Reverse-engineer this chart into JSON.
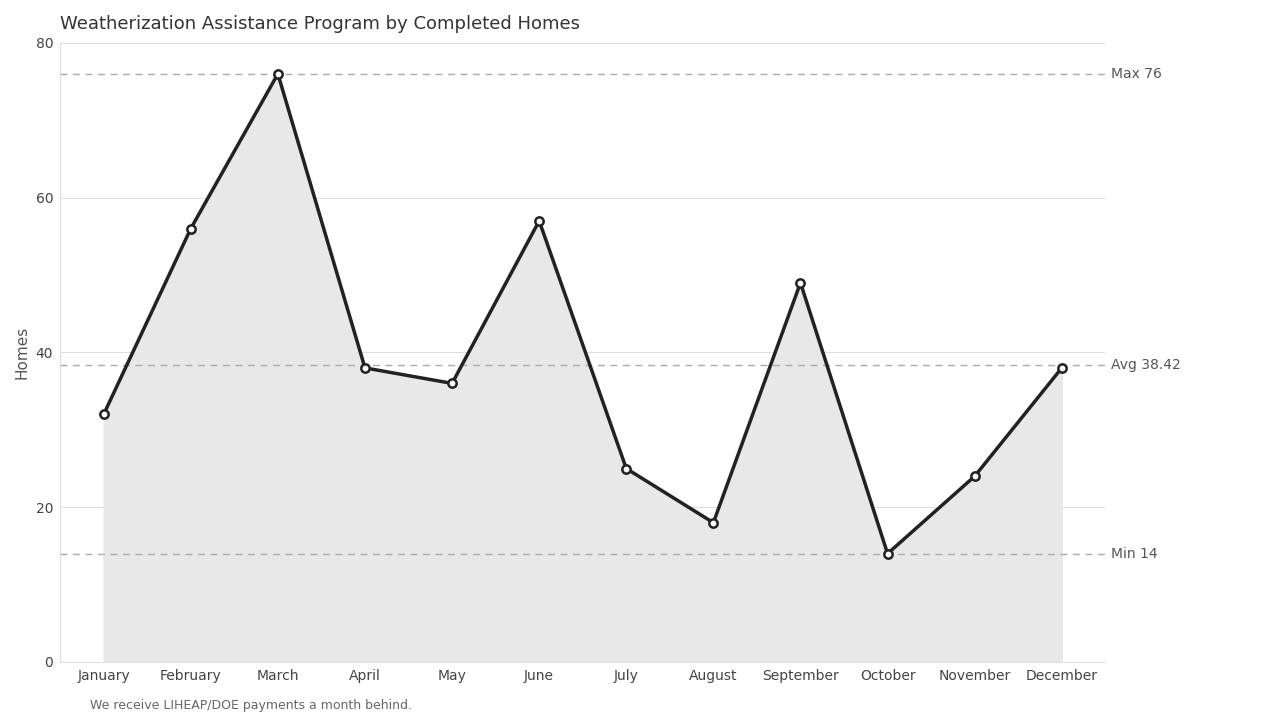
{
  "title": "Weatherization Assistance Program by Completed Homes",
  "xlabel": "",
  "ylabel": "Homes",
  "categories": [
    "January",
    "February",
    "March",
    "April",
    "May",
    "June",
    "July",
    "August",
    "September",
    "October",
    "November",
    "December"
  ],
  "values": [
    32,
    56,
    76,
    38,
    36,
    57,
    25,
    18,
    49,
    14,
    24,
    38
  ],
  "ylim": [
    0,
    80
  ],
  "yticks": [
    0,
    20,
    40,
    60,
    80
  ],
  "max_val": 76,
  "min_val": 14,
  "avg_val": 38.42,
  "line_color": "#222222",
  "fill_color": "#e8e8e8",
  "marker_facecolor": "#ffffff",
  "marker_edge_color": "#222222",
  "bg_color": "#ffffff",
  "plot_bg_color": "#ffffff",
  "grid_color": "#dddddd",
  "dashed_line_color": "#aaaaaa",
  "annotation_color": "#555555",
  "title_fontsize": 13,
  "axis_label_fontsize": 11,
  "tick_fontsize": 10,
  "annotation_fontsize": 10,
  "footnote": "We receive LIHEAP/DOE payments a month behind.",
  "footnote_fontsize": 9
}
